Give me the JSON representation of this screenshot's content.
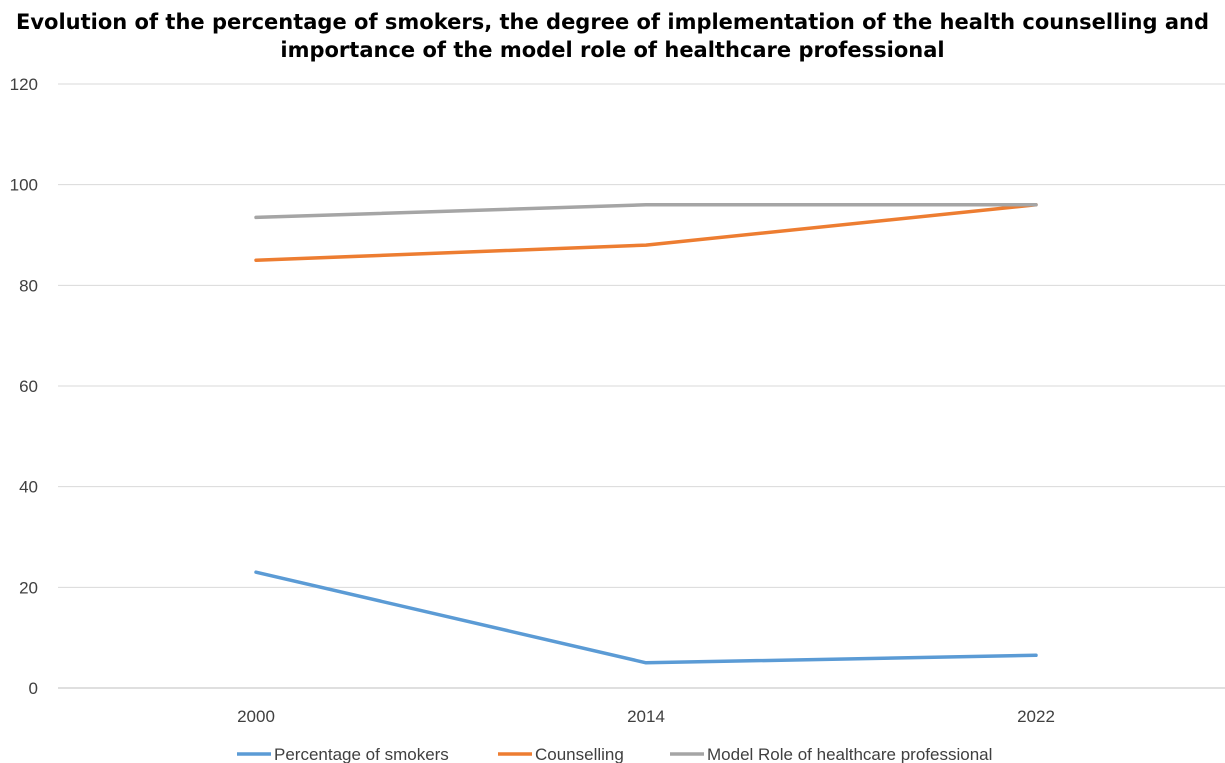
{
  "chart_data": {
    "type": "line",
    "title_lines": [
      "Evolution of the percentage of smokers, the degree of implementation of the health counselling and",
      "importance of the model role of healthcare professional"
    ],
    "categories": [
      "2000",
      "2014",
      "2022"
    ],
    "ylim": [
      0,
      120
    ],
    "yticks": [
      0,
      20,
      40,
      60,
      80,
      100,
      120
    ],
    "grid": true,
    "legend_position": "bottom",
    "series": [
      {
        "name": "Percentage of smokers",
        "values": [
          23,
          5,
          6.5
        ],
        "color": "#5B9BD5"
      },
      {
        "name": "Counselling",
        "values": [
          85,
          88,
          96
        ],
        "color": "#ED7D31"
      },
      {
        "name": "Model Role of healthcare professional",
        "values": [
          93.5,
          96,
          96
        ],
        "color": "#A5A5A5"
      }
    ]
  }
}
